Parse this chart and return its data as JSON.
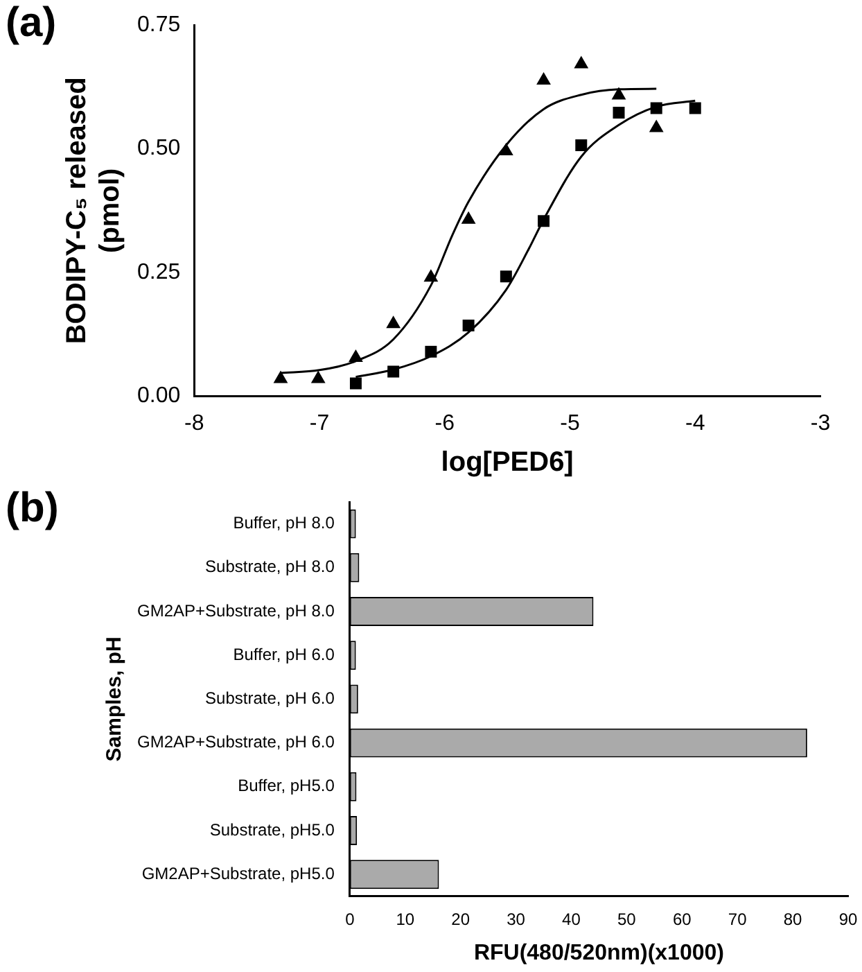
{
  "chart_data": [
    {
      "type": "scatter",
      "title": "(a)",
      "xlabel": "log[PED6]",
      "ylabel": "BODIPY-C₅ released\n(pmol)",
      "xlim": [
        -8,
        -3
      ],
      "xticks": [
        -8,
        -7,
        -6,
        -5,
        -4,
        -3
      ],
      "ylim": [
        0,
        0.75
      ],
      "yticks": [
        {
          "value": 0,
          "label": "0.00"
        },
        0.25,
        {
          "value": 0.5,
          "label": "0.50"
        },
        0.75
      ],
      "grid": false,
      "legend": false,
      "series": [
        {
          "type": "scatter",
          "marker": "triangle",
          "color": "#000000",
          "x": [
            -7.31,
            -7.01,
            -6.71,
            -6.41,
            -6.11,
            -5.81,
            -5.51,
            -5.21,
            -4.91,
            -4.61,
            -4.31
          ],
          "values": [
            0.035,
            0.035,
            0.078,
            0.146,
            0.24,
            0.357,
            0.495,
            0.638,
            0.671,
            0.608,
            0.542
          ]
        },
        {
          "type": "scatter",
          "marker": "square",
          "color": "#000000",
          "x": [
            -6.71,
            -6.41,
            -6.11,
            -5.81,
            -5.51,
            -5.21,
            -4.91,
            -4.61,
            -4.31,
            -4.0
          ],
          "values": [
            0.026,
            0.05,
            0.09,
            0.143,
            0.242,
            0.354,
            0.507,
            0.573,
            0.582,
            0.582
          ]
        },
        {
          "type": "line",
          "marker": "none",
          "color": "#000000",
          "x": [
            -7.31,
            -7.0,
            -6.71,
            -6.41,
            -6.11,
            -5.94,
            -5.81,
            -5.51,
            -5.21,
            -4.91,
            -4.61,
            -4.31
          ],
          "values": [
            0.047,
            0.053,
            0.071,
            0.115,
            0.224,
            0.325,
            0.393,
            0.507,
            0.58,
            0.609,
            0.62,
            0.621
          ]
        },
        {
          "type": "line",
          "marker": "none",
          "color": "#000000",
          "x": [
            -6.71,
            -6.41,
            -6.11,
            -5.81,
            -5.51,
            -5.33,
            -5.21,
            -4.91,
            -4.61,
            -4.31,
            -4.0
          ],
          "values": [
            0.039,
            0.054,
            0.081,
            0.129,
            0.215,
            0.297,
            0.357,
            0.484,
            0.548,
            0.585,
            0.597
          ]
        }
      ]
    },
    {
      "type": "bar",
      "orientation": "horizontal",
      "title": "(b)",
      "xlabel": "RFU(480/520nm)(x1000)",
      "ylabel": "Samples, pH",
      "categories": [
        "Buffer, pH 8.0",
        "Substrate, pH 8.0",
        "GM2AP+Substrate, pH 8.0",
        "Buffer, pH 6.0",
        "Substrate, pH 6.0",
        "GM2AP+Substrate, pH 6.0",
        "Buffer, pH5.0",
        "Substrate, pH5.0",
        "GM2AP+Substrate, pH5.0"
      ],
      "values": [
        1.1,
        1.7,
        44,
        1.1,
        1.5,
        82.6,
        1.2,
        1.3,
        16.1
      ],
      "color": "#aaaaaa",
      "xlim": [
        0,
        90
      ],
      "xticks": [
        0,
        10,
        20,
        30,
        40,
        50,
        60,
        70,
        80,
        90
      ],
      "grid": false,
      "legend": false
    }
  ]
}
